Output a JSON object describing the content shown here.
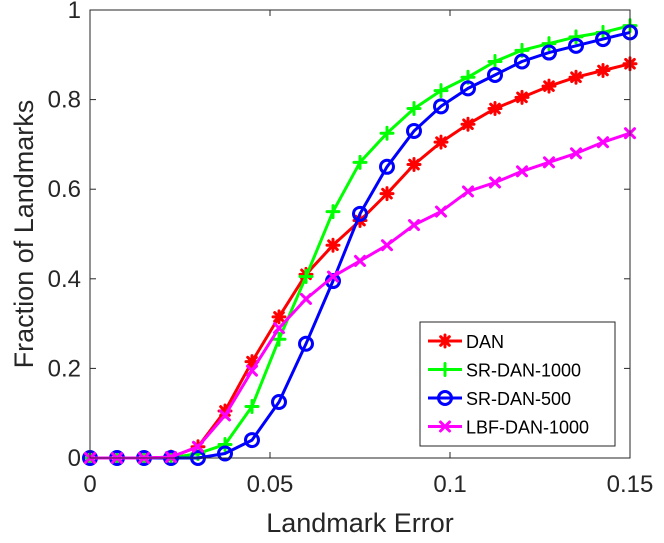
{
  "chart_data": {
    "type": "line",
    "title": "",
    "xlabel": "Landmark Error",
    "ylabel": "Fraction of Landmarks",
    "xlim": [
      0,
      0.15
    ],
    "ylim": [
      0,
      1
    ],
    "xticks": [
      0,
      0.05,
      0.1,
      0.15
    ],
    "xtick_labels": [
      "0",
      "0.05",
      "0.1",
      "0.15"
    ],
    "yticks": [
      0,
      0.2,
      0.4,
      0.6,
      0.8,
      1
    ],
    "ytick_labels": [
      "0",
      "0.2",
      "0.4",
      "0.6",
      "0.8",
      "1"
    ],
    "grid": false,
    "legend_position": "bottom-right",
    "x": [
      0,
      0.0075,
      0.015,
      0.0225,
      0.03,
      0.0375,
      0.045,
      0.0525,
      0.06,
      0.0675,
      0.075,
      0.0825,
      0.09,
      0.0975,
      0.105,
      0.1125,
      0.12,
      0.1275,
      0.135,
      0.1425,
      0.15
    ],
    "series": [
      {
        "name": "DAN",
        "color": "#ff0000",
        "marker": "asterisk",
        "values": [
          0,
          0,
          0,
          0.002,
          0.025,
          0.105,
          0.215,
          0.315,
          0.41,
          0.475,
          0.53,
          0.59,
          0.655,
          0.705,
          0.745,
          0.78,
          0.805,
          0.83,
          0.85,
          0.865,
          0.88
        ]
      },
      {
        "name": "SR-DAN-1000",
        "color": "#00ff00",
        "marker": "plus",
        "values": [
          0,
          0,
          0,
          0,
          0.01,
          0.03,
          0.115,
          0.265,
          0.405,
          0.55,
          0.66,
          0.725,
          0.78,
          0.82,
          0.85,
          0.885,
          0.91,
          0.925,
          0.94,
          0.95,
          0.965
        ]
      },
      {
        "name": "SR-DAN-500",
        "color": "#0000ff",
        "marker": "circle",
        "values": [
          0,
          0,
          0,
          0,
          0,
          0.01,
          0.04,
          0.125,
          0.255,
          0.395,
          0.545,
          0.65,
          0.73,
          0.785,
          0.825,
          0.855,
          0.885,
          0.905,
          0.92,
          0.935,
          0.95
        ]
      },
      {
        "name": "LBF-DAN-1000",
        "color": "#ff00ff",
        "marker": "x",
        "values": [
          0,
          0,
          0,
          0.002,
          0.025,
          0.095,
          0.195,
          0.29,
          0.355,
          0.405,
          0.44,
          0.475,
          0.52,
          0.55,
          0.595,
          0.615,
          0.64,
          0.66,
          0.68,
          0.705,
          0.725
        ]
      }
    ]
  }
}
